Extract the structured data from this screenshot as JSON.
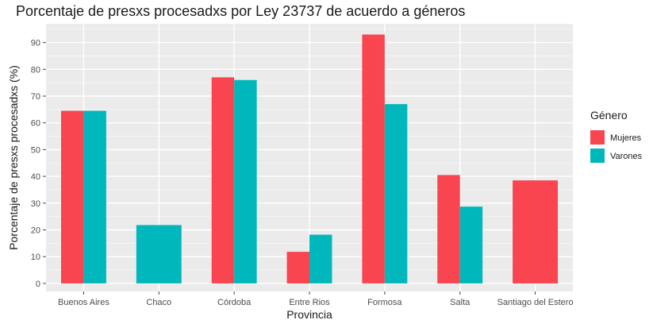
{
  "chart_data": {
    "type": "bar",
    "title": "Porcentaje de presxs procesadxs por Ley 23737 de acuerdo a géneros",
    "xlabel": "Provincia",
    "ylabel": "Porcentaje de presxs procesadxs (%)",
    "categories": [
      "Buenos Aires",
      "Chaco",
      "Córdoba",
      "Entre Rios",
      "Formosa",
      "Salta",
      "Santiago del Estero"
    ],
    "series": [
      {
        "name": "Mujeres",
        "color": "#f8454f",
        "values": [
          64.5,
          null,
          77,
          11.8,
          93,
          40.5,
          38.5
        ]
      },
      {
        "name": "Varones",
        "color": "#00b8bc",
        "values": [
          64.5,
          21.8,
          76,
          18.2,
          67,
          28.7,
          null
        ]
      }
    ],
    "ylim": [
      -3,
      97
    ],
    "yticks": [
      0,
      10,
      20,
      30,
      40,
      50,
      60,
      70,
      80,
      90
    ],
    "legend": {
      "title": "Género",
      "position": "right"
    },
    "grid": true,
    "panel_background": "#ebebeb"
  }
}
